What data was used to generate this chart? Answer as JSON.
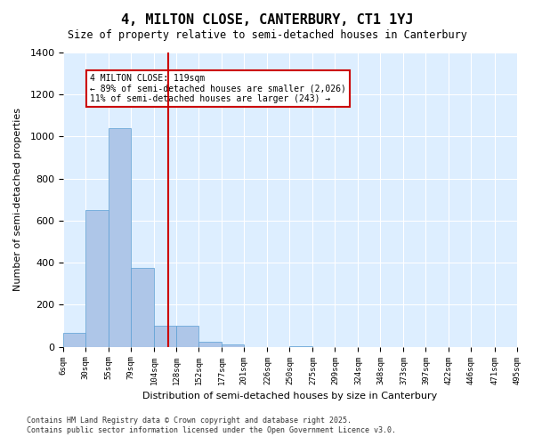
{
  "title": "4, MILTON CLOSE, CANTERBURY, CT1 1YJ",
  "subtitle": "Size of property relative to semi-detached houses in Canterbury",
  "xlabel": "Distribution of semi-detached houses by size in Canterbury",
  "ylabel": "Number of semi-detached properties",
  "property_size": 119,
  "property_label": "4 MILTON CLOSE: 119sqm",
  "annotation_line1": "4 MILTON CLOSE: 119sqm",
  "annotation_line2": "← 89% of semi-detached houses are smaller (2,026)",
  "annotation_line3": "11% of semi-detached houses are larger (243) →",
  "footnote1": "Contains HM Land Registry data © Crown copyright and database right 2025.",
  "footnote2": "Contains public sector information licensed under the Open Government Licence v3.0.",
  "bin_labels": [
    "6sqm",
    "30sqm",
    "55sqm",
    "79sqm",
    "104sqm",
    "128sqm",
    "152sqm",
    "177sqm",
    "201sqm",
    "226sqm",
    "250sqm",
    "275sqm",
    "299sqm",
    "324sqm",
    "348sqm",
    "373sqm",
    "397sqm",
    "422sqm",
    "446sqm",
    "471sqm",
    "495sqm"
  ],
  "bin_edges": [
    6,
    30,
    55,
    79,
    104,
    128,
    152,
    177,
    201,
    226,
    250,
    275,
    299,
    324,
    348,
    373,
    397,
    422,
    446,
    471,
    495
  ],
  "bar_values": [
    65,
    650,
    1040,
    375,
    100,
    100,
    25,
    10,
    0,
    0,
    5,
    0,
    0,
    0,
    0,
    0,
    0,
    0,
    0,
    0
  ],
  "bar_color": "#aec6e8",
  "bar_edge_color": "#5a9fd4",
  "red_line_color": "#cc0000",
  "bg_color": "#ddeeff",
  "annotation_box_color": "#cc0000",
  "ylim": [
    0,
    1400
  ],
  "yticks": [
    0,
    200,
    400,
    600,
    800,
    1000,
    1200,
    1400
  ]
}
